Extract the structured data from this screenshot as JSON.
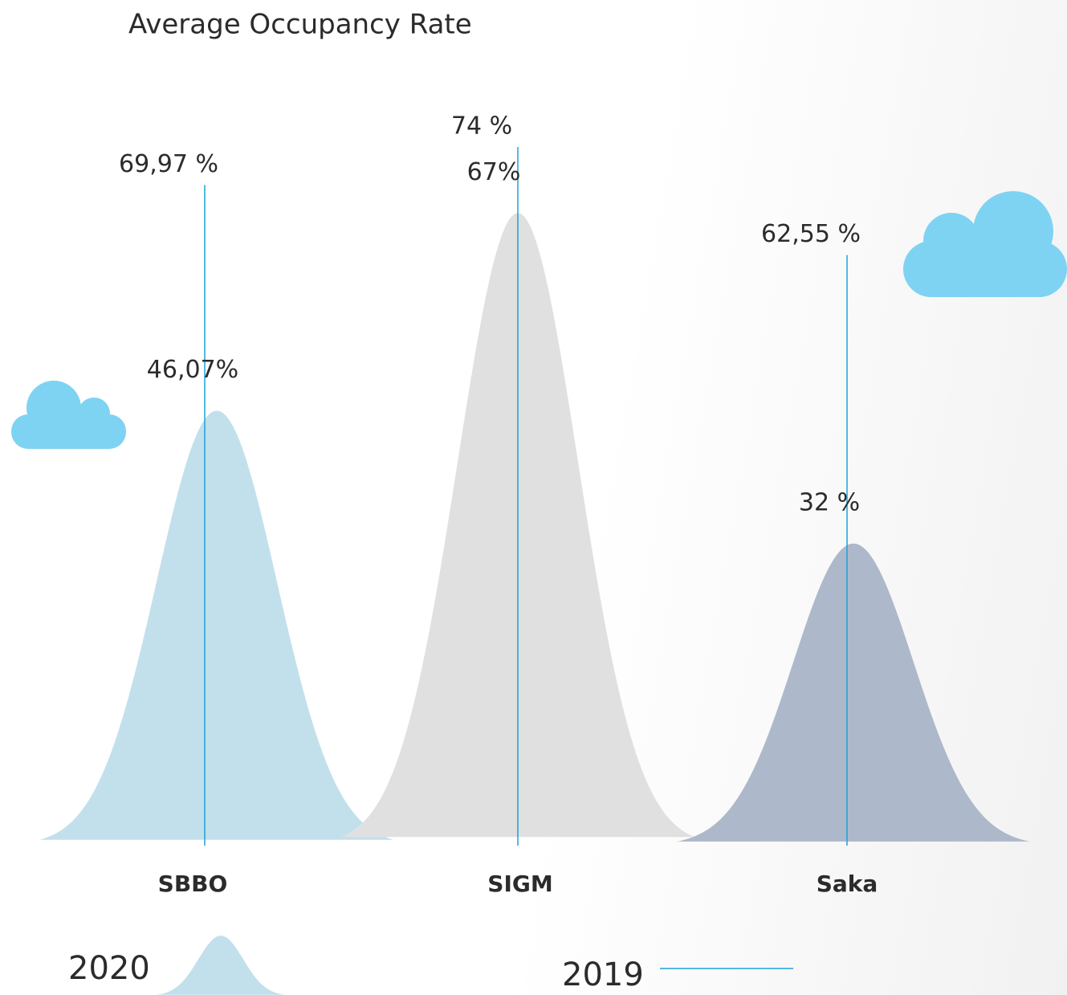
{
  "chart_data": {
    "type": "bell",
    "title": "Average Occupancy Rate",
    "categories": [
      "SBBO",
      "SIGM",
      "Saka"
    ],
    "series": [
      {
        "name": "2020",
        "colors": [
          "#c2e0ec",
          "#e0e0e0",
          "#adb8ca"
        ],
        "values": [
          46.07,
          67,
          32
        ],
        "value_labels": [
          "46,07%",
          "67%",
          "32 %"
        ]
      },
      {
        "name": "2019",
        "color": "#1aa3d9",
        "values": [
          69.97,
          74,
          62.55
        ],
        "value_labels": [
          "69,97 %",
          "74 %",
          "62,55 %"
        ]
      }
    ]
  }
}
